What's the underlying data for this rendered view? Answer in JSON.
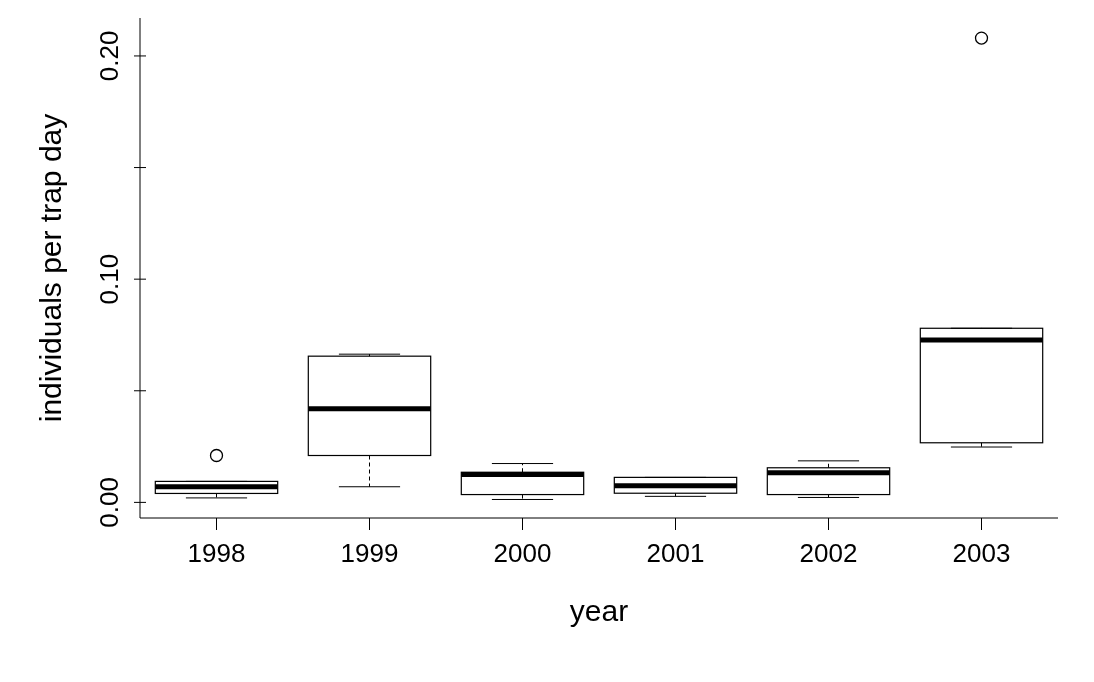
{
  "chart_data": {
    "type": "box",
    "xlabel": "year",
    "ylabel": "individuals per trap day",
    "categories": [
      "1998",
      "1999",
      "2000",
      "2001",
      "2002",
      "2003"
    ],
    "boxes": [
      {
        "low": 0.002,
        "q1": 0.004,
        "median": 0.007,
        "q3": 0.0094,
        "high": 0.0094,
        "outliers": [
          0.021
        ]
      },
      {
        "low": 0.007,
        "q1": 0.021,
        "median": 0.042,
        "q3": 0.0655,
        "high": 0.0664
      },
      {
        "low": 0.0013,
        "q1": 0.0035,
        "median": 0.0125,
        "q3": 0.0135,
        "high": 0.0174
      },
      {
        "low": 0.0027,
        "q1": 0.0041,
        "median": 0.0075,
        "q3": 0.0112,
        "high": 0.0112
      },
      {
        "low": 0.0022,
        "q1": 0.0035,
        "median": 0.0133,
        "q3": 0.0155,
        "high": 0.0186
      },
      {
        "low": 0.0248,
        "q1": 0.0267,
        "median": 0.0727,
        "q3": 0.078,
        "high": 0.078,
        "outliers": [
          0.208
        ]
      }
    ],
    "ylim": [
      -0.007,
      0.217
    ],
    "yticks": [
      {
        "value": 0,
        "label": "0.00"
      },
      {
        "value": 0.05,
        "label": null
      },
      {
        "value": 0.1,
        "label": "0.10"
      },
      {
        "value": 0.15,
        "label": null
      },
      {
        "value": 0.2,
        "label": "0.20"
      }
    ],
    "grid": false,
    "legend": false
  }
}
